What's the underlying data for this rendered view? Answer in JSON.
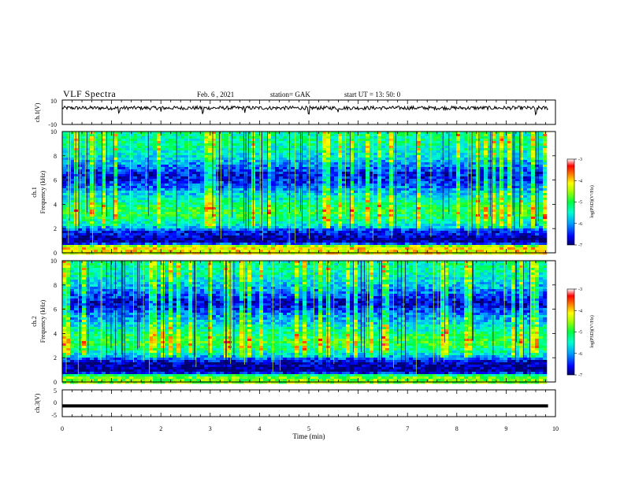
{
  "header": {
    "title": "VLF Spectra",
    "date": "Feb. 6 , 2021",
    "station": "station= GAK",
    "start": "start  UT =   13: 50: 0"
  },
  "panels": {
    "ch1_waveform": {
      "ylabel": "ch.1(V)",
      "ticks": [
        "10",
        "-10"
      ]
    },
    "ch1_spectrogram": {
      "ylabel_line1": "ch.1",
      "ylabel_line2": "Frequency (kHz)",
      "ticks": [
        "0",
        "2",
        "4",
        "6",
        "8",
        "10"
      ]
    },
    "ch2_spectrogram": {
      "ylabel_line1": "ch.2",
      "ylabel_line2": "Frequency (kHz)",
      "ticks": [
        "0",
        "2",
        "4",
        "6",
        "8",
        "10"
      ]
    },
    "ch3_waveform": {
      "ylabel": "ch.3(V)",
      "ticks": [
        "5",
        "0",
        "-5"
      ]
    },
    "colorbar": {
      "label": "log(PSD)(V²/Hz)",
      "ticks": [
        "-3",
        "-4",
        "-5",
        "-6",
        "-7"
      ]
    },
    "xaxis": {
      "label": "Time  (min)",
      "ticks": [
        "0",
        "1",
        "2",
        "3",
        "4",
        "5",
        "6",
        "7",
        "8",
        "9",
        "10"
      ]
    }
  },
  "chart_data": {
    "type": "heatmap",
    "x_unit": "min",
    "xlim": [
      0,
      10
    ],
    "data_end_min": 9.85,
    "ch1": {
      "ylim": [
        -10,
        10
      ],
      "mean_level_V": 3.5,
      "noise_amplitude_V": 1.5,
      "spike_times_min": [
        1.15,
        2.0,
        2.85,
        3.7,
        5.0,
        5.6,
        9.6
      ]
    },
    "spectrogram_freq_range_kHz": [
      0,
      10
    ],
    "colorbar_range_log_psd": [
      -7,
      -3
    ],
    "ch1_spectrum_profile": {
      "freq_kHz": [
        0.0,
        0.5,
        0.8,
        1.0,
        1.2,
        1.5,
        1.8,
        2.0,
        2.5,
        3.0,
        3.5,
        4.0,
        4.5,
        5.0,
        5.5,
        6.0,
        6.5,
        7.0,
        8.0,
        9.0,
        10.0
      ],
      "log_psd": [
        -4.2,
        -4.0,
        -6.8,
        -6.9,
        -6.9,
        -6.6,
        -6.5,
        -6.0,
        -5.4,
        -5.1,
        -5.0,
        -5.2,
        -5.5,
        -5.8,
        -6.2,
        -6.5,
        -6.6,
        -6.2,
        -5.6,
        -5.3,
        -5.3
      ]
    },
    "ch2_spectrum_profile": {
      "freq_kHz": [
        0.0,
        0.5,
        0.8,
        1.0,
        1.2,
        1.5,
        1.8,
        2.0,
        2.5,
        3.0,
        3.5,
        4.0,
        4.5,
        5.0,
        5.5,
        6.0,
        6.5,
        7.0,
        8.0,
        9.0,
        10.0
      ],
      "log_psd": [
        -4.6,
        -4.8,
        -6.9,
        -7.0,
        -6.9,
        -6.8,
        -6.5,
        -6.0,
        -5.4,
        -5.0,
        -5.0,
        -5.2,
        -5.5,
        -5.8,
        -6.0,
        -6.4,
        -6.8,
        -6.4,
        -5.8,
        -5.4,
        -5.3
      ]
    },
    "ch3": {
      "ylim": [
        -5,
        5
      ],
      "level_V": -1.0
    }
  },
  "colors": {
    "colormap": [
      "#00006e",
      "#0000ff",
      "#00a0ff",
      "#00ffd0",
      "#00ff40",
      "#a0ff00",
      "#ffff00",
      "#ff8000",
      "#ff0000",
      "#ffffff"
    ],
    "ink": "#000000"
  }
}
